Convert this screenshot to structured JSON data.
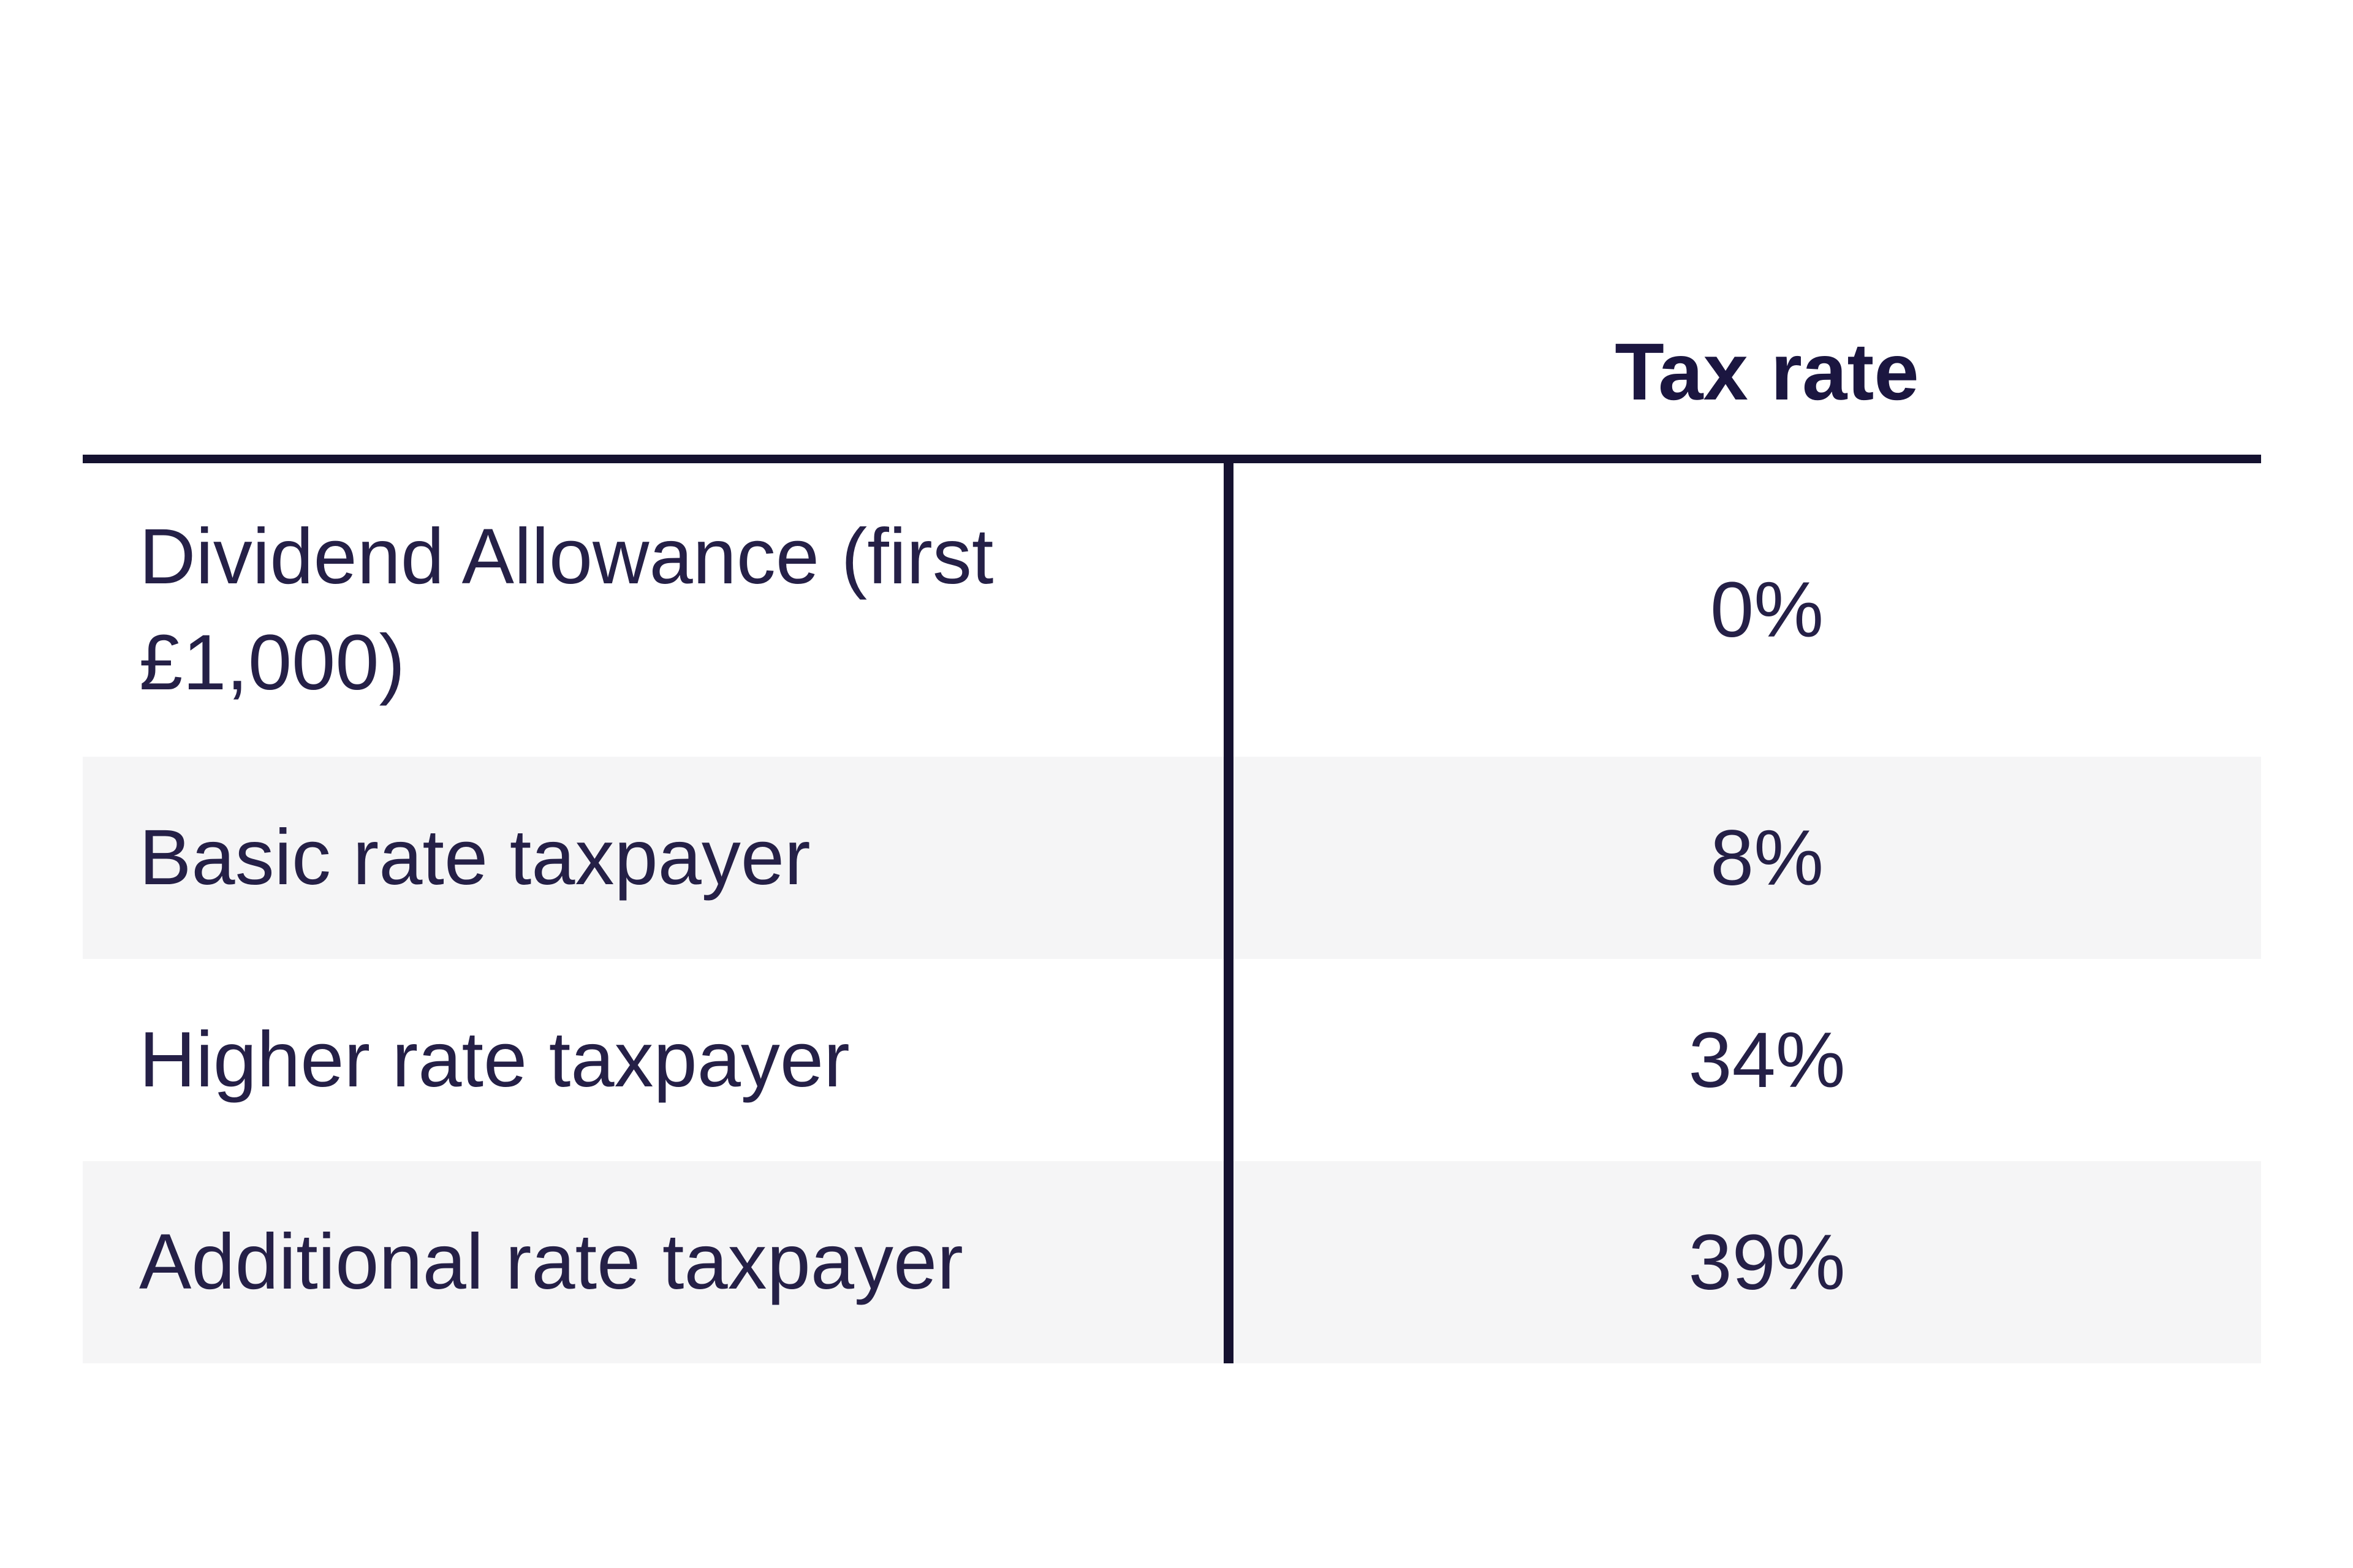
{
  "chart_data": {
    "type": "table",
    "title": "",
    "columns": [
      "",
      "Tax rate"
    ],
    "rows": [
      [
        "Dividend Allowance (first £1,000)",
        "0%"
      ],
      [
        "Basic rate taxpayer",
        "8%"
      ],
      [
        "Higher rate taxpayer",
        "34%"
      ],
      [
        "Additional rate taxpayer",
        "39%"
      ]
    ],
    "layout": {
      "header_rule": true,
      "column_divider": true,
      "alternating_row_background": [
        false,
        true,
        false,
        true
      ]
    }
  },
  "table": {
    "header": {
      "tax_rate_label": "Tax rate"
    },
    "rows": [
      {
        "label": "Dividend Allowance (first £1,000)",
        "value": "0%"
      },
      {
        "label": "Basic rate taxpayer",
        "value": "8%"
      },
      {
        "label": "Higher rate taxpayer",
        "value": "34%"
      },
      {
        "label": "Additional rate taxpayer",
        "value": "39%"
      }
    ],
    "colors": {
      "line": "#151230",
      "header_text": "#1b1640",
      "body_text": "#252047",
      "alt_row_bg": "#f5f5f6",
      "page_bg": "#ffffff"
    }
  }
}
